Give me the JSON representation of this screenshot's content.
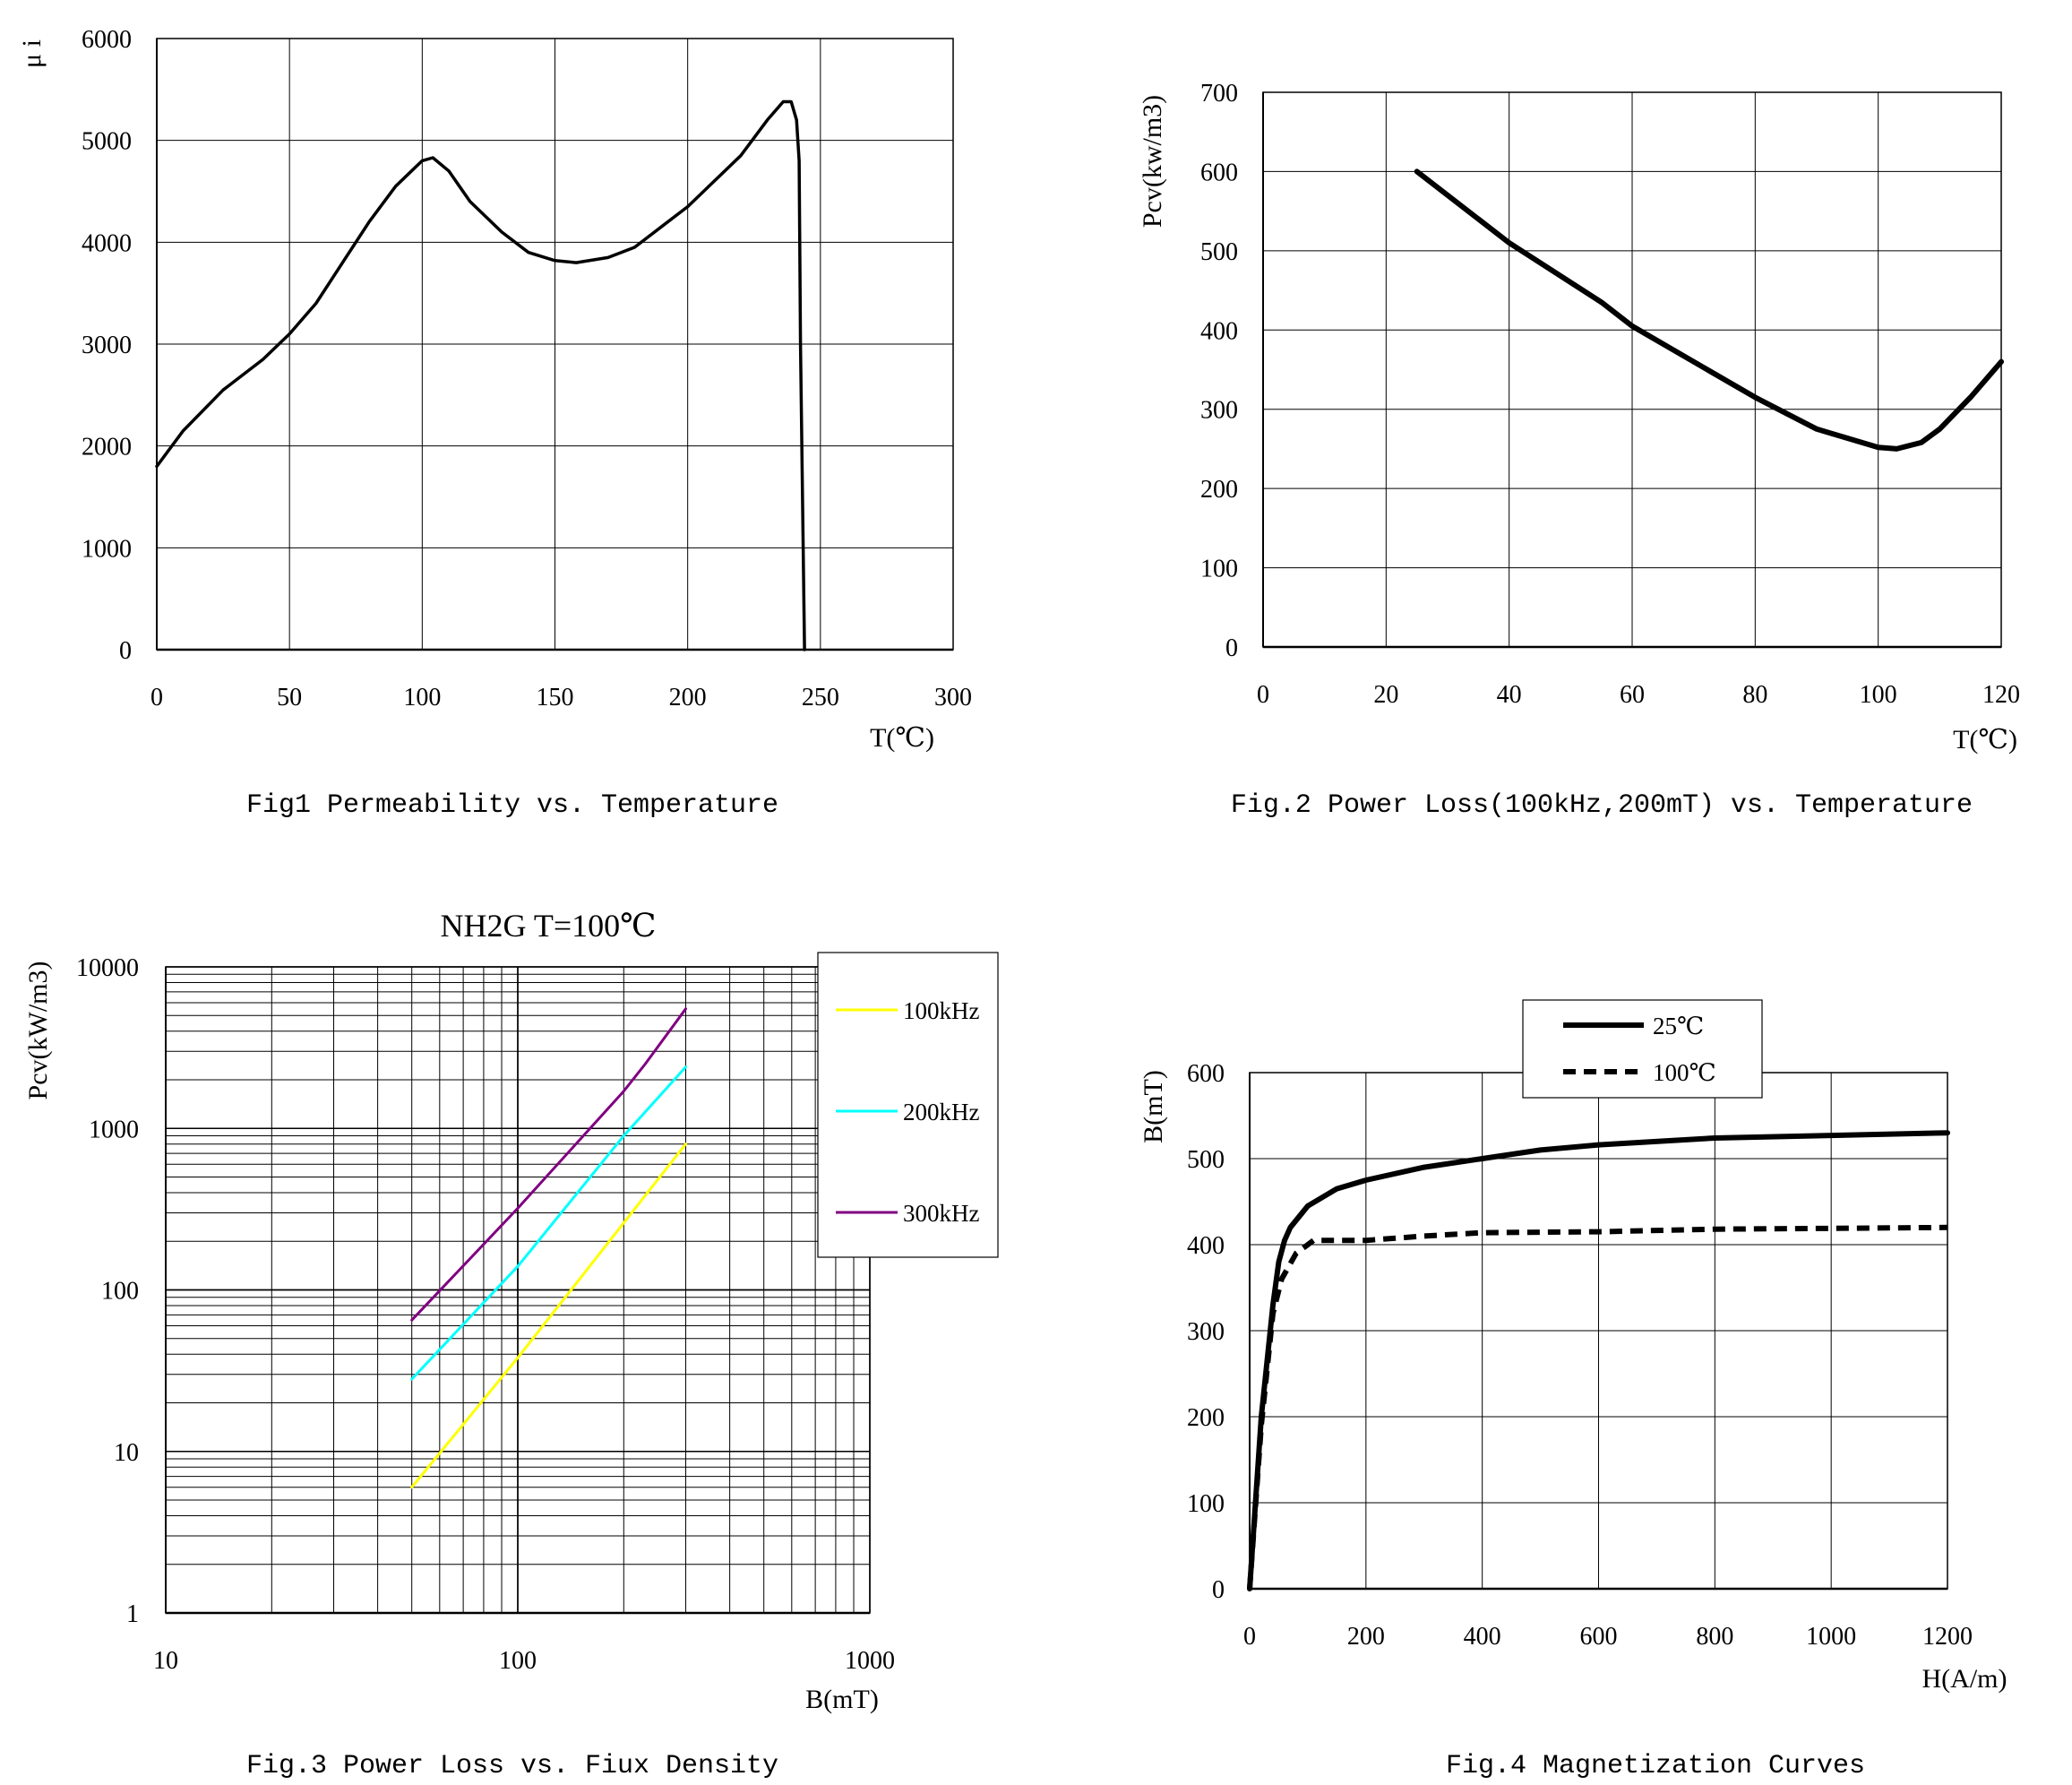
{
  "chart_data": [
    {
      "type": "line",
      "caption": "Fig1 Permeability vs. Temperature",
      "xlabel": "T(℃)",
      "ylabel": "μ i",
      "xlim": [
        0,
        300
      ],
      "ylim": [
        0,
        6000
      ],
      "xticks": [
        "0",
        "50",
        "100",
        "150",
        "200",
        "250",
        "300"
      ],
      "yticks": [
        "0",
        "1000",
        "2000",
        "3000",
        "4000",
        "5000",
        "6000"
      ],
      "grid": true,
      "series": [
        {
          "color": "#000000",
          "style": "solid",
          "x": [
            0,
            10,
            25,
            40,
            50,
            60,
            70,
            80,
            90,
            100,
            104,
            110,
            118,
            130,
            140,
            150,
            158,
            170,
            180,
            190,
            200,
            210,
            220,
            230,
            236,
            239,
            241,
            242,
            242.5,
            244
          ],
          "y": [
            1800,
            2150,
            2550,
            2850,
            3100,
            3400,
            3800,
            4200,
            4550,
            4800,
            4830,
            4700,
            4400,
            4100,
            3900,
            3820,
            3800,
            3850,
            3950,
            4150,
            4350,
            4600,
            4850,
            5200,
            5380,
            5380,
            5200,
            4800,
            3000,
            0
          ]
        }
      ]
    },
    {
      "type": "line",
      "caption": "Fig.2 Power Loss(100kHz,200mT) vs. Temperature",
      "xlabel": "T(℃)",
      "ylabel": "Pcv(kw/m3)",
      "xlim": [
        0,
        120
      ],
      "ylim": [
        0,
        700
      ],
      "xticks": [
        "0",
        "20",
        "40",
        "60",
        "80",
        "100",
        "120"
      ],
      "yticks": [
        "0",
        "100",
        "200",
        "300",
        "400",
        "500",
        "600",
        "700"
      ],
      "grid": true,
      "series": [
        {
          "color": "#000000",
          "style": "solid",
          "x": [
            25,
            40,
            55,
            60,
            70,
            80,
            90,
            100,
            103,
            107,
            110,
            115,
            120
          ],
          "y": [
            600,
            510,
            435,
            405,
            360,
            315,
            275,
            252,
            250,
            258,
            275,
            315,
            360
          ]
        }
      ]
    },
    {
      "type": "line",
      "title": "NH2G   T=100℃",
      "caption": "Fig.3 Power Loss vs. Fiux Density",
      "xlabel": "B(mT)",
      "ylabel": "Pcv(kW/m3)",
      "xscale": "log",
      "yscale": "log",
      "xlim": [
        10,
        1000
      ],
      "ylim": [
        1,
        10000
      ],
      "xticks": [
        "10",
        "100",
        "1000"
      ],
      "yticks": [
        "1",
        "10",
        "100",
        "1000",
        "10000"
      ],
      "grid": true,
      "legend": "top-right",
      "series": [
        {
          "name": "100kHz",
          "color": "#ffff00",
          "style": "solid",
          "x": [
            50,
            100,
            200,
            300
          ],
          "y": [
            6,
            38,
            260,
            800
          ]
        },
        {
          "name": "200kHz",
          "color": "#00ffff",
          "style": "solid",
          "x": [
            50,
            100,
            200,
            300
          ],
          "y": [
            28,
            140,
            900,
            2400
          ]
        },
        {
          "name": "300kHz",
          "color": "#800080",
          "style": "solid",
          "x": [
            50,
            100,
            200,
            230,
            300
          ],
          "y": [
            65,
            320,
            1700,
            2500,
            5500
          ]
        }
      ]
    },
    {
      "type": "line",
      "caption": "Fig.4 Magnetization Curves",
      "xlabel": "H(A/m)",
      "ylabel": "B(mT)",
      "xlim": [
        0,
        1200
      ],
      "ylim": [
        0,
        600
      ],
      "xticks": [
        "0",
        "200",
        "400",
        "600",
        "800",
        "1000",
        "1200"
      ],
      "yticks": [
        "0",
        "100",
        "200",
        "300",
        "400",
        "500",
        "600"
      ],
      "grid": true,
      "legend": "top-center",
      "series": [
        {
          "name": "25℃",
          "color": "#000000",
          "style": "solid",
          "x": [
            0,
            20,
            40,
            50,
            60,
            70,
            100,
            150,
            200,
            300,
            400,
            500,
            600,
            800,
            1000,
            1200
          ],
          "y": [
            0,
            200,
            330,
            380,
            405,
            420,
            445,
            465,
            475,
            490,
            500,
            510,
            516,
            524,
            527,
            530
          ]
        },
        {
          "name": "100℃",
          "color": "#000000",
          "style": "dashed",
          "x": [
            0,
            20,
            40,
            55,
            80,
            110,
            200,
            300,
            400,
            600,
            800,
            1000,
            1200
          ],
          "y": [
            0,
            190,
            320,
            360,
            390,
            405,
            405,
            410,
            414,
            415,
            418,
            419,
            420
          ]
        }
      ]
    }
  ]
}
